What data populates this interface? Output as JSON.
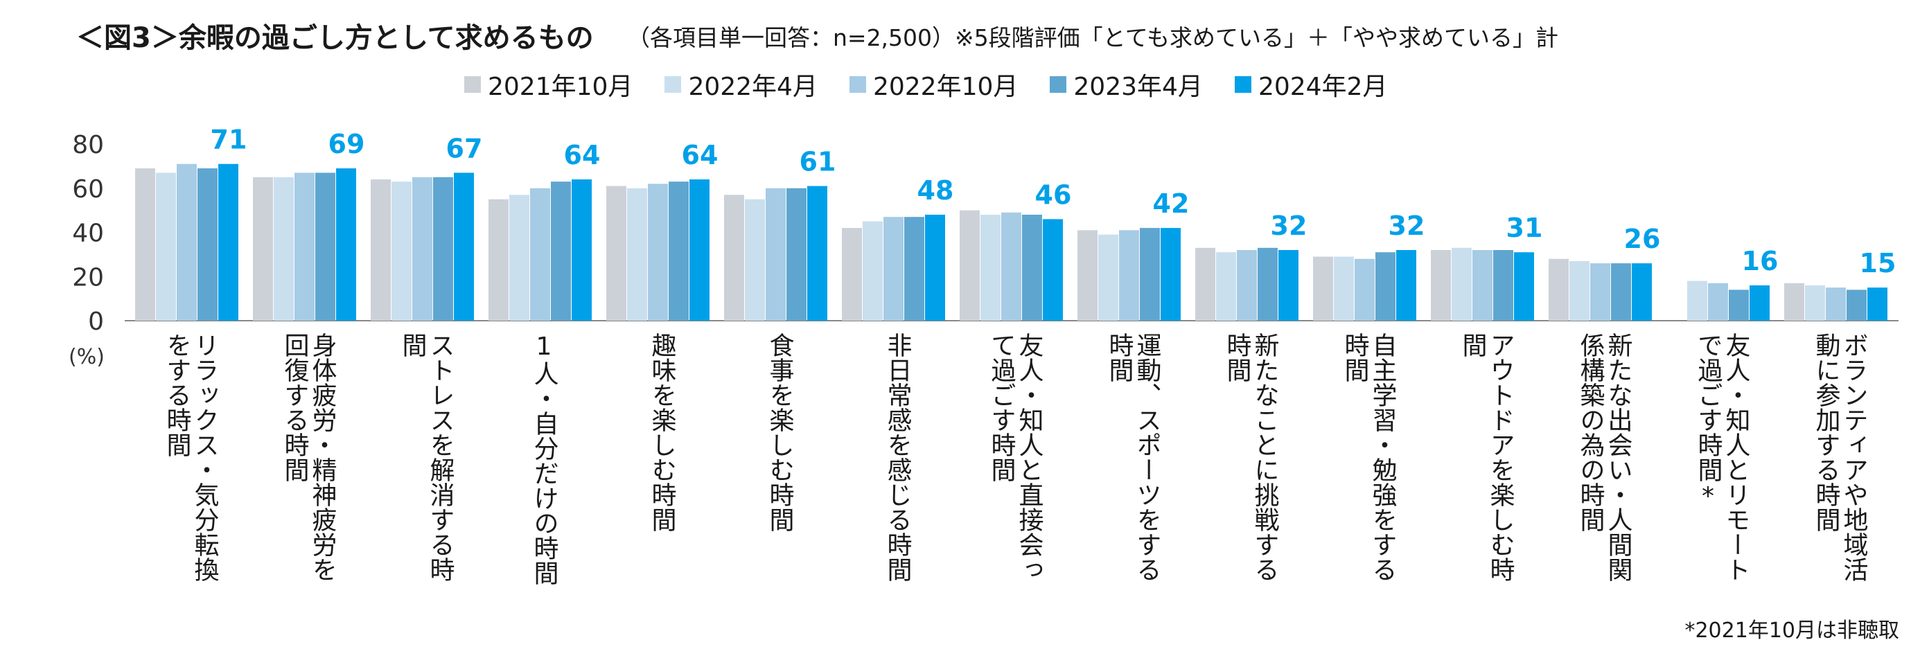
{
  "title": "＜図3＞余暇の過ごし方として求めるもの",
  "subtitle": "（各項目単一回答：n=2,500）※5段階評価「とても求めている」＋「やや求めている」計",
  "footnote": "*2021年10月は非聴取",
  "chart_data": {
    "type": "bar",
    "ylim": [
      0,
      80
    ],
    "yticks": [
      0,
      20,
      40,
      60,
      80
    ],
    "yunit": "(%)",
    "grid": false,
    "legend_position": "top-center",
    "categories": [
      "リラックス・気分転換をする時間",
      "身体疲労・精神疲労を回復する時間",
      "ストレスを解消する時間",
      "1人・自分だけの時間",
      "趣味を楽しむ時間",
      "食事を楽しむ時間",
      "非日常感を感じる時間",
      "友人・知人と直接会って過ごす時間",
      "運動、スポーツをする時間",
      "新たなことに挑戦する時間",
      "自主学習・勉強をする時間",
      "アウトドアを楽しむ時間",
      "新たな出会い・人間関係構築の為の時間",
      "友人・知人とリモートで過ごす時間*",
      "ボランティアや地域活動に参加する時間"
    ],
    "series": [
      {
        "name": "2021年10月",
        "color": "#ccd1d8",
        "values": [
          69,
          65,
          64,
          55,
          61,
          57,
          42,
          50,
          41,
          33,
          29,
          32,
          28,
          null,
          17
        ]
      },
      {
        "name": "2022年4月",
        "color": "#c9dfee",
        "values": [
          67,
          65,
          63,
          57,
          60,
          55,
          45,
          48,
          39,
          31,
          29,
          33,
          27,
          18,
          16
        ]
      },
      {
        "name": "2022年10月",
        "color": "#a6cbe5",
        "values": [
          71,
          67,
          65,
          60,
          62,
          60,
          47,
          49,
          41,
          32,
          28,
          32,
          26,
          17,
          15
        ]
      },
      {
        "name": "2023年4月",
        "color": "#5ea6d0",
        "values": [
          69,
          67,
          65,
          63,
          63,
          60,
          47,
          48,
          42,
          33,
          31,
          32,
          26,
          14,
          14
        ]
      },
      {
        "name": "2024年2月",
        "color": "#00a0e9",
        "values": [
          71,
          69,
          67,
          64,
          64,
          61,
          48,
          46,
          42,
          32,
          32,
          31,
          26,
          16,
          15
        ]
      }
    ],
    "labels_2024": [
      "71",
      "69",
      "67",
      "64",
      "64",
      "61",
      "48",
      "46",
      "42",
      "32",
      "32",
      "31",
      "26",
      "16",
      "15"
    ]
  }
}
